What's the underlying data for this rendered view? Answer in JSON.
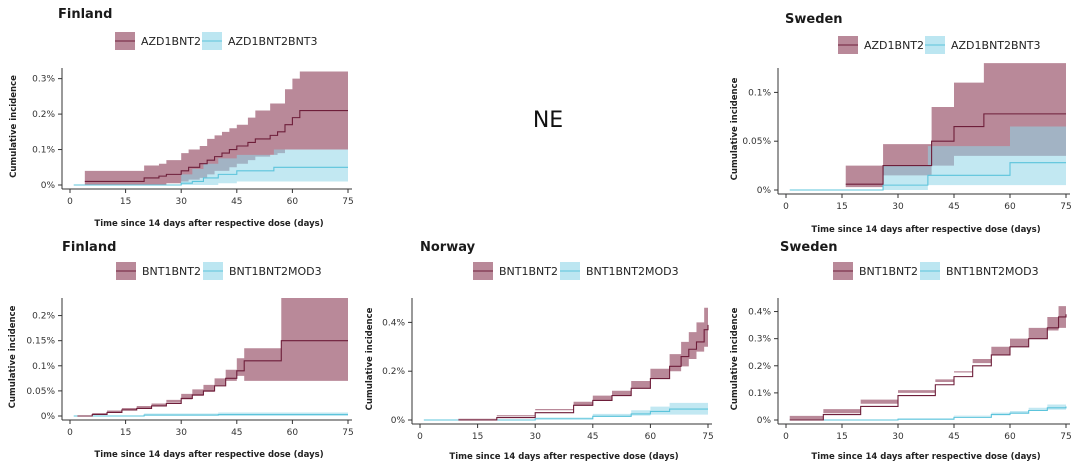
{
  "colors": {
    "dark": "#6e1e3a",
    "dark_fill": "#8b3a55",
    "light": "#5cc4db",
    "light_fill": "#8fd6e8"
  },
  "ne_label": "NE",
  "chart_data": [
    {
      "type": "line",
      "title": "Finland",
      "legend": [
        "AZD1BNT2",
        "AZD1BNT2BNT3"
      ],
      "xlabel": "Time since 14 days after respective dose (days)",
      "ylabel": "Cumulative incidence",
      "xlim": [
        0,
        75
      ],
      "ylim": [
        0,
        0.33
      ],
      "xticks": [
        0,
        15,
        30,
        45,
        60,
        75
      ],
      "yticks": [
        0,
        0.1,
        0.2,
        0.3
      ],
      "yticklabels": [
        "0%",
        "0.1%",
        "0.2%",
        "0.3%"
      ],
      "series": [
        {
          "name": "AZD1BNT2",
          "color": "dark",
          "x": [
            4,
            20,
            24,
            26,
            30,
            32,
            35,
            37,
            39,
            41,
            43,
            45,
            48,
            50,
            54,
            56,
            58,
            60,
            62,
            75
          ],
          "y": [
            0.01,
            0.02,
            0.025,
            0.03,
            0.04,
            0.05,
            0.06,
            0.07,
            0.08,
            0.09,
            0.1,
            0.11,
            0.12,
            0.13,
            0.14,
            0.15,
            0.17,
            0.19,
            0.21,
            0.21
          ],
          "lower": [
            0,
            0,
            0,
            0,
            0.005,
            0.01,
            0.015,
            0.02,
            0.03,
            0.04,
            0.04,
            0.05,
            0.06,
            0.07,
            0.08,
            0.085,
            0.09,
            0.1,
            0.1,
            0.1
          ],
          "upper": [
            0.04,
            0.055,
            0.06,
            0.07,
            0.09,
            0.1,
            0.11,
            0.13,
            0.14,
            0.15,
            0.16,
            0.17,
            0.19,
            0.21,
            0.23,
            0.23,
            0.27,
            0.3,
            0.32,
            0.32
          ]
        },
        {
          "name": "AZD1BNT2BNT3",
          "color": "light",
          "x": [
            1,
            30,
            33,
            36,
            40,
            45,
            55,
            75
          ],
          "y": [
            0,
            0.005,
            0.01,
            0.02,
            0.03,
            0.04,
            0.05,
            0.05
          ],
          "lower": [
            0,
            0,
            0,
            0,
            0,
            0.005,
            0.01,
            0.01
          ],
          "upper": [
            0,
            0.03,
            0.045,
            0.06,
            0.075,
            0.085,
            0.1,
            0.1
          ]
        }
      ]
    },
    {
      "type": "line",
      "title": "Sweden",
      "legend": [
        "AZD1BNT2",
        "AZD1BNT2BNT3"
      ],
      "xlabel": "Time since 14 days after respective dose (days)",
      "ylabel": "Cumulative incidence",
      "xlim": [
        0,
        75
      ],
      "ylim": [
        0,
        0.125
      ],
      "xticks": [
        0,
        15,
        30,
        45,
        60,
        75
      ],
      "yticks": [
        0,
        0.05,
        0.1
      ],
      "yticklabels": [
        "0%",
        "0.05%",
        "0.1%"
      ],
      "series": [
        {
          "name": "AZD1BNT2",
          "color": "dark",
          "x": [
            16,
            26,
            39,
            45,
            53,
            75
          ],
          "y": [
            0.006,
            0.025,
            0.05,
            0.065,
            0.078,
            0.078
          ],
          "lower": [
            0,
            0.003,
            0.015,
            0.025,
            0.035,
            0.035
          ],
          "upper": [
            0.025,
            0.047,
            0.085,
            0.11,
            0.13,
            0.13
          ]
        },
        {
          "name": "AZD1BNT2BNT3",
          "color": "light",
          "x": [
            1,
            26,
            38,
            60,
            75
          ],
          "y": [
            0,
            0.005,
            0.015,
            0.028,
            0.028
          ],
          "lower": [
            0,
            0,
            0,
            0.005,
            0.005
          ],
          "upper": [
            0,
            0.025,
            0.045,
            0.065,
            0.065
          ]
        }
      ]
    },
    {
      "type": "line",
      "title": "Finland",
      "legend": [
        "BNT1BNT2",
        "BNT1BNT2MOD3"
      ],
      "xlabel": "Time since 14 days after respective dose (days)",
      "ylabel": "Cumulative incidence",
      "xlim": [
        0,
        75
      ],
      "ylim": [
        0,
        0.235
      ],
      "xticks": [
        0,
        15,
        30,
        45,
        60,
        75
      ],
      "yticks": [
        0,
        0.05,
        0.1,
        0.15,
        0.2
      ],
      "yticklabels": [
        "0%",
        "0.05%",
        "0.1%",
        "0.15%",
        "0.2%"
      ],
      "series": [
        {
          "name": "BNT1BNT2",
          "color": "dark",
          "x": [
            2,
            6,
            10,
            14,
            18,
            22,
            26,
            30,
            33,
            36,
            39,
            42,
            45,
            47,
            57,
            75
          ],
          "y": [
            0,
            0.003,
            0.007,
            0.012,
            0.015,
            0.02,
            0.025,
            0.035,
            0.042,
            0.05,
            0.06,
            0.075,
            0.09,
            0.11,
            0.15,
            0.15
          ],
          "lower": [
            0,
            0,
            0.003,
            0.008,
            0.011,
            0.015,
            0.019,
            0.027,
            0.033,
            0.04,
            0.048,
            0.06,
            0.07,
            0.08,
            0.07,
            0.07
          ],
          "upper": [
            0,
            0.006,
            0.011,
            0.016,
            0.02,
            0.025,
            0.032,
            0.044,
            0.053,
            0.062,
            0.075,
            0.092,
            0.115,
            0.135,
            0.235,
            0.235
          ]
        },
        {
          "name": "BNT1BNT2MOD3",
          "color": "light",
          "x": [
            1,
            20,
            40,
            75
          ],
          "y": [
            0,
            0.002,
            0.003,
            0.003
          ],
          "lower": [
            0,
            0,
            0,
            0
          ],
          "upper": [
            0,
            0.005,
            0.007,
            0.007
          ]
        }
      ]
    },
    {
      "type": "line",
      "title": "Norway",
      "legend": [
        "BNT1BNT2",
        "BNT1BNT2MOD3"
      ],
      "xlabel": "Time since 14 days after respective dose (days)",
      "ylabel": "Cumulative incidence",
      "xlim": [
        0,
        75
      ],
      "ylim": [
        0,
        0.5
      ],
      "xticks": [
        0,
        15,
        30,
        45,
        60,
        75
      ],
      "yticks": [
        0,
        0.2,
        0.4
      ],
      "yticklabels": [
        "0%",
        "0.2%",
        "0.4%"
      ],
      "series": [
        {
          "name": "BNT1BNT2",
          "color": "dark",
          "x": [
            10,
            20,
            30,
            40,
            45,
            50,
            55,
            60,
            65,
            68,
            70,
            72,
            74,
            75
          ],
          "y": [
            0,
            0.01,
            0.03,
            0.06,
            0.08,
            0.1,
            0.13,
            0.17,
            0.22,
            0.26,
            0.29,
            0.32,
            0.37,
            0.39
          ],
          "lower": [
            0,
            0.005,
            0.02,
            0.045,
            0.06,
            0.08,
            0.1,
            0.13,
            0.17,
            0.2,
            0.22,
            0.25,
            0.28,
            0.3
          ],
          "upper": [
            0,
            0.015,
            0.04,
            0.075,
            0.1,
            0.12,
            0.16,
            0.21,
            0.27,
            0.32,
            0.36,
            0.4,
            0.46,
            0.5
          ]
        },
        {
          "name": "BNT1BNT2MOD3",
          "color": "light",
          "x": [
            1,
            30,
            45,
            55,
            60,
            65,
            75
          ],
          "y": [
            0,
            0.005,
            0.015,
            0.025,
            0.035,
            0.045,
            0.045
          ],
          "lower": [
            0,
            0,
            0.007,
            0.013,
            0.018,
            0.022,
            0.022
          ],
          "upper": [
            0,
            0.01,
            0.025,
            0.04,
            0.055,
            0.07,
            0.07
          ]
        }
      ]
    },
    {
      "type": "line",
      "title": "Sweden",
      "legend": [
        "BNT1BNT2",
        "BNT1BNT2MOD3"
      ],
      "xlabel": "Time since 14 days after respective dose (days)",
      "ylabel": "Cumulative incidence",
      "xlim": [
        0,
        75
      ],
      "ylim": [
        0,
        0.45
      ],
      "xticks": [
        0,
        15,
        30,
        45,
        60,
        75
      ],
      "yticks": [
        0,
        0.1,
        0.2,
        0.3,
        0.4
      ],
      "yticklabels": [
        "0%",
        "0.1%",
        "0.2%",
        "0.3%",
        "0.4%"
      ],
      "series": [
        {
          "name": "BNT1BNT2",
          "color": "dark",
          "x": [
            1,
            10,
            20,
            30,
            40,
            45,
            50,
            55,
            60,
            65,
            70,
            73,
            75
          ],
          "y": [
            0,
            0.02,
            0.05,
            0.09,
            0.13,
            0.16,
            0.2,
            0.24,
            0.27,
            0.3,
            0.34,
            0.38,
            0.39
          ],
          "lower": [
            0,
            0.015,
            0.04,
            0.075,
            0.11,
            0.14,
            0.175,
            0.21,
            0.24,
            0.27,
            0.3,
            0.33,
            0.34
          ],
          "upper": [
            0,
            0.025,
            0.06,
            0.1,
            0.15,
            0.18,
            0.225,
            0.27,
            0.3,
            0.34,
            0.38,
            0.42,
            0.44
          ]
        },
        {
          "name": "BNT1BNT2MOD3",
          "color": "light",
          "x": [
            1,
            30,
            45,
            55,
            60,
            65,
            70,
            75
          ],
          "y": [
            0,
            0.003,
            0.01,
            0.02,
            0.025,
            0.035,
            0.045,
            0.05
          ],
          "lower": [
            0,
            0,
            0.005,
            0.014,
            0.018,
            0.026,
            0.034,
            0.038
          ],
          "upper": [
            0,
            0.006,
            0.016,
            0.027,
            0.033,
            0.045,
            0.057,
            0.064
          ]
        }
      ]
    }
  ]
}
